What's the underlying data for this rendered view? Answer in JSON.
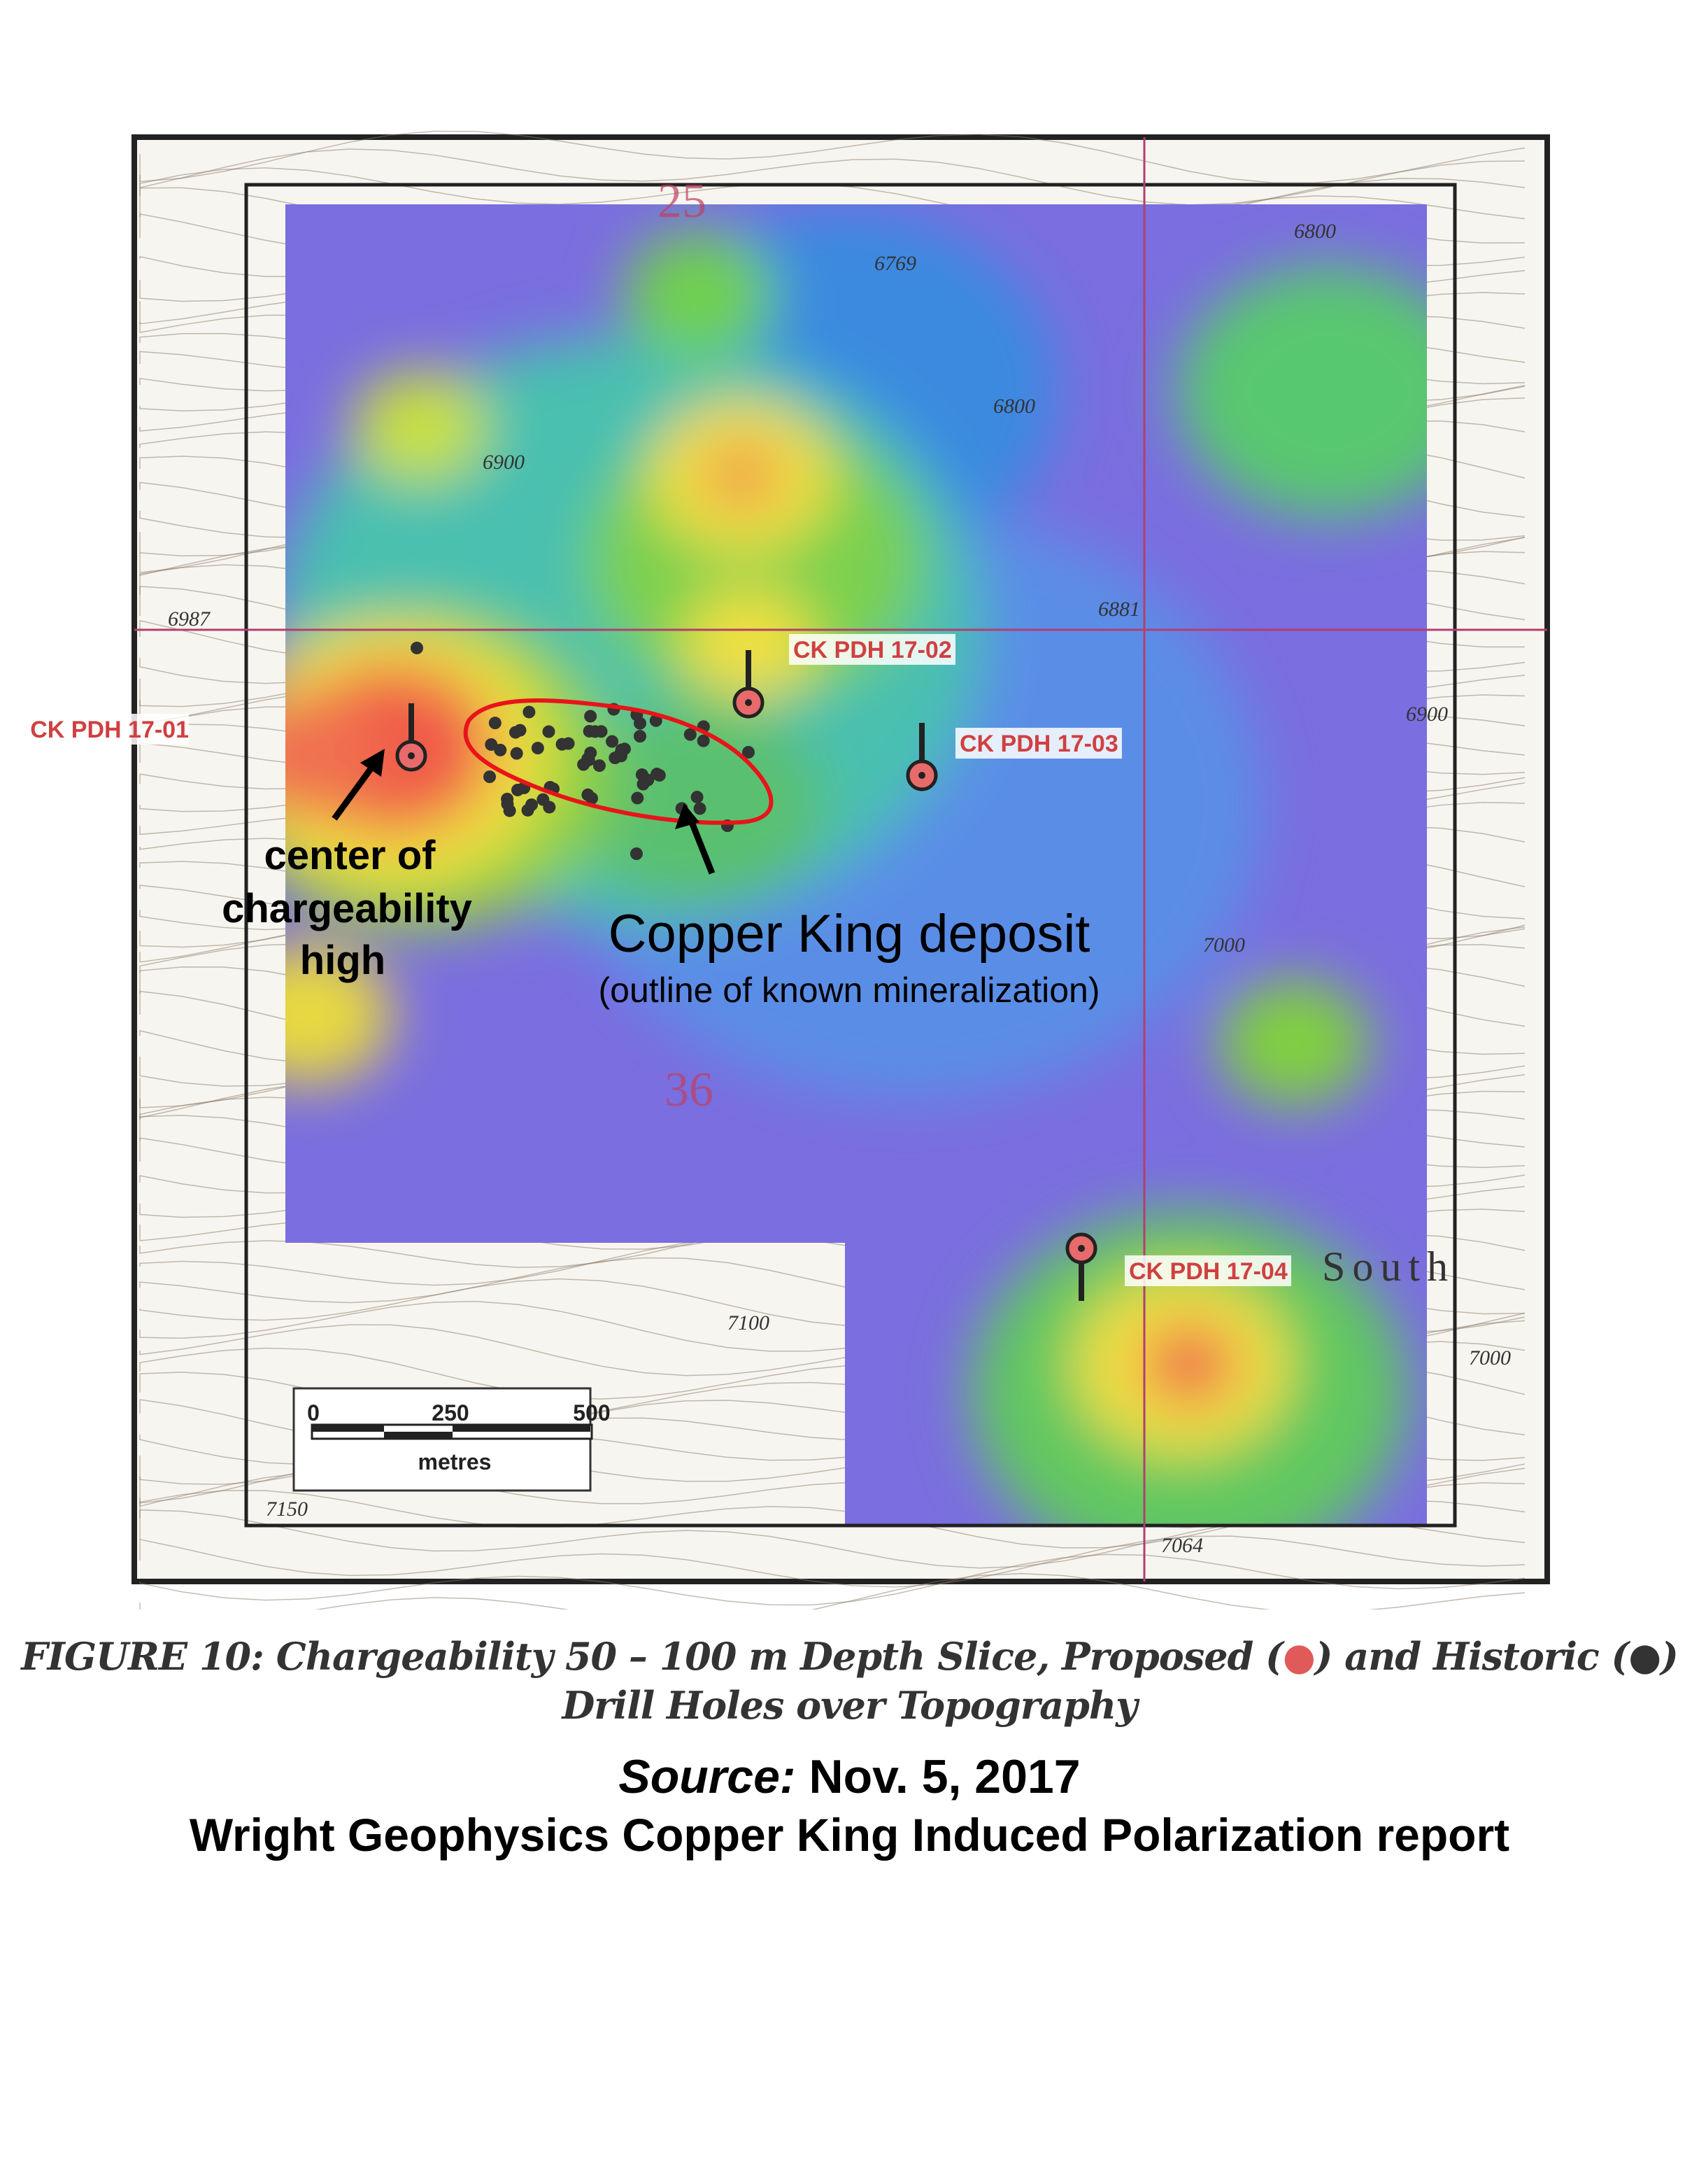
{
  "map": {
    "section_labels": [
      "25",
      "36"
    ],
    "contour_labels": [
      "6769",
      "6800",
      "6987",
      "6881",
      "7000",
      "7100",
      "7150",
      "7064",
      "7000",
      "6900",
      "6800",
      "6900"
    ],
    "place_label": "South",
    "drill_holes": [
      "CK PDH 17-01",
      "CK PDH 17-02",
      "CK PDH 17-03",
      "CK PDH 17-04"
    ],
    "annotation_high": [
      "center of",
      "chargeability",
      "high"
    ],
    "annotation_deposit": "Copper King deposit",
    "annotation_deposit_sub": "(outline of known mineralization)",
    "scale_bar": {
      "ticks": [
        "0",
        "250",
        "500"
      ],
      "unit": "metres"
    },
    "colors": {
      "proposed": "#e86a6a",
      "historic": "#333333",
      "outline": "#e8141a",
      "low": "#6a5fd8",
      "high": "#f05a4a"
    }
  },
  "caption": {
    "line1_a": "FIGURE 10: Chargeability 50 – 100 m Depth Slice, Proposed (",
    "line1_b": ") and Historic (",
    "line1_c": ")",
    "line2": "Drill Holes over Topography",
    "dot": "●"
  },
  "source": {
    "label": "Source:",
    "date": " Nov. 5, 2017",
    "report": "Wright Geophysics Copper King Induced Polarization report"
  }
}
